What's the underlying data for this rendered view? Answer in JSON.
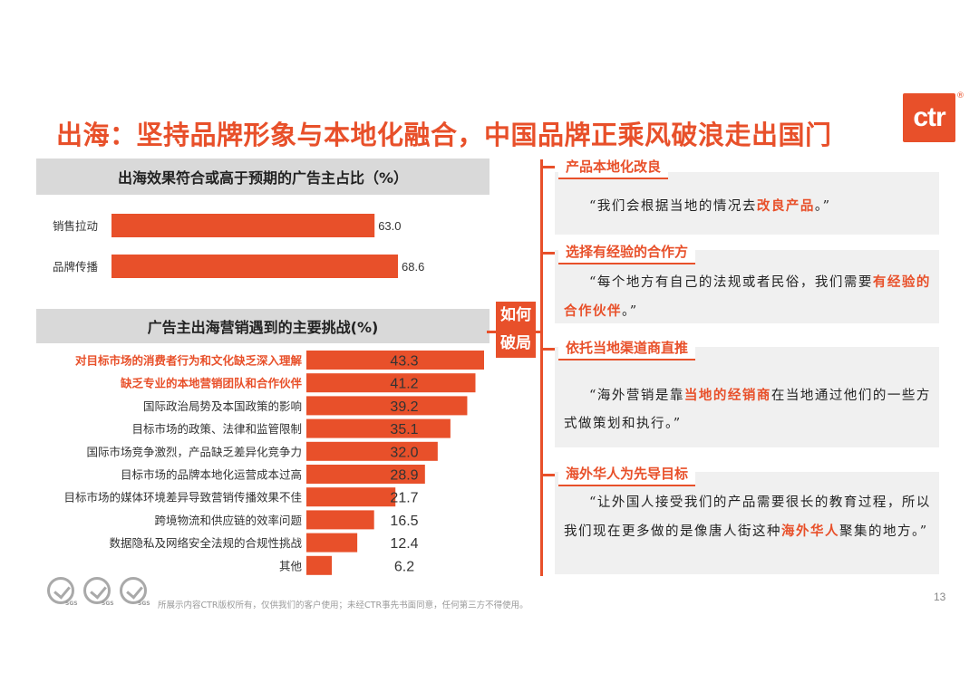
{
  "title": "出海：坚持品牌形象与本地化融合，中国品牌正乘风破浪走出国门",
  "logo": {
    "text": "ctr",
    "reg": "®"
  },
  "colors": {
    "accent": "#e8502a",
    "header_bg": "#d9d9d9",
    "box_bg": "#f0f0f0"
  },
  "chart_data": [
    {
      "type": "bar",
      "title": "出海效果符合或高于预期的广告主占比（%）",
      "categories": [
        "销售拉动",
        "品牌传播"
      ],
      "values": [
        63.0,
        68.6
      ],
      "value_labels": [
        "63.0",
        "68.6"
      ],
      "orientation": "horizontal"
    },
    {
      "type": "bar",
      "title": "广告主出海营销遇到的主要挑战(%)",
      "categories": [
        "对目标市场的消费者行为和文化缺乏深入理解",
        "缺乏专业的本地营销团队和合作伙伴",
        "国际政治局势及本国政策的影响",
        "目标市场的政策、法律和监管限制",
        "国际市场竞争激烈，产品缺乏差异化竞争力",
        "目标市场的品牌本地化运营成本过高",
        "目标市场的媒体环境差异导致营销传播效果不佳",
        "跨境物流和供应链的效率问题",
        "数据隐私及网络安全法规的合规性挑战",
        "其他"
      ],
      "values": [
        43.3,
        41.2,
        39.2,
        35.1,
        32.0,
        28.9,
        21.7,
        16.5,
        12.4,
        6.2
      ],
      "value_labels": [
        "43.3",
        "41.2",
        "39.2",
        "35.1",
        "32.0",
        "28.9",
        "21.7",
        "16.5",
        "12.4",
        "6.2"
      ],
      "highlighted": [
        true,
        true,
        false,
        false,
        false,
        false,
        false,
        false,
        false,
        false
      ],
      "orientation": "horizontal"
    }
  ],
  "center_label": {
    "line1": "如何",
    "line2": "破局"
  },
  "insights": [
    {
      "tag": "产品本地化改良",
      "quote_pre": "“我们会根据当地的情况去",
      "quote_hl": "改良产品",
      "quote_post": "。”"
    },
    {
      "tag": "选择有经验的合作方",
      "quote_pre": "“每个地方有自己的法规或者民俗，我们需要",
      "quote_hl": "有经验的合作伙伴",
      "quote_post": "。”"
    },
    {
      "tag": "依托当地渠道商直推",
      "quote_pre": "“海外营销是靠",
      "quote_hl": "当地的经销商",
      "quote_post": "在当地通过他们的一些方式做策划和执行。”"
    },
    {
      "tag": "海外华人为先导目标",
      "quote_pre": "“让外国人接受我们的产品需要很长的教育过程，所以我们现在更多做的是像唐人街这种",
      "quote_hl": "海外华人",
      "quote_post": "聚集的地方。”"
    }
  ],
  "footer": {
    "certification": "SGS",
    "copyright": "所展示内容CTR版权所有，仅供我们的客户使用；未经CTR事先书面同意，任何第三方不得使用。",
    "page_number": "13"
  }
}
